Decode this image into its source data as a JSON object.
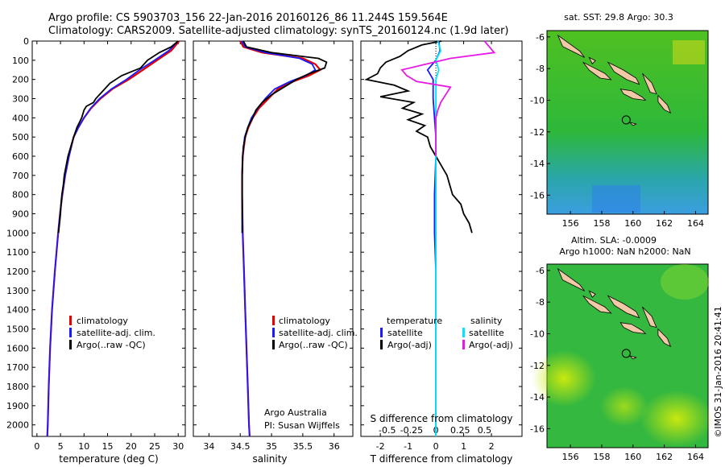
{
  "header": {
    "line1": "Argo profile: CS 5903703_156 22-Jan-2016 20160126_86 11.244S 159.564E",
    "line2": "Climatology: CARS2009. Satellite-adjusted climatology: synTS_20160124.nc (1.9d later)"
  },
  "depth_ticks": [
    0,
    100,
    200,
    300,
    400,
    500,
    600,
    700,
    800,
    900,
    1000,
    1100,
    1200,
    1300,
    1400,
    1500,
    1600,
    1700,
    1800,
    1900,
    2000
  ],
  "colors": {
    "climatology": "#e60000",
    "satellite": "#1a1aff",
    "argo": "#000000",
    "sal_satellite": "#00e5ff",
    "sal_argo": "#e619e6"
  },
  "chart_data": [
    {
      "type": "line",
      "panel": "temperature",
      "xlabel": "temperature (deg C)",
      "xlim": [
        -1,
        31.5
      ],
      "ylim": [
        2060,
        0
      ],
      "x_ticks": [
        0,
        5,
        10,
        15,
        20,
        25,
        30
      ],
      "legend": [
        "climatology",
        "satellite-adj. clim.",
        "Argo(..raw -QC)"
      ],
      "series": [
        {
          "name": "climatology",
          "depth": [
            0,
            50,
            100,
            150,
            200,
            250,
            300,
            350,
            400,
            450,
            500,
            600,
            700,
            800,
            900,
            1000,
            1200,
            1400,
            1600,
            1800,
            2000,
            2060
          ],
          "values": [
            30.2,
            28.5,
            25.5,
            22.5,
            19.5,
            16,
            13.5,
            11.5,
            10,
            8.8,
            7.8,
            6.8,
            6,
            5.4,
            4.9,
            4.5,
            3.8,
            3.2,
            2.8,
            2.5,
            2.3,
            2.2
          ]
        },
        {
          "name": "satellite-adj. clim.",
          "depth": [
            0,
            50,
            100,
            150,
            200,
            250,
            300,
            350,
            400,
            450,
            500,
            600,
            700,
            800,
            900,
            1000,
            1200,
            1400,
            1600,
            1800,
            2000,
            2060
          ],
          "values": [
            30,
            28,
            25,
            21.8,
            19,
            15.8,
            13.3,
            11.4,
            10,
            8.8,
            7.8,
            6.8,
            6,
            5.4,
            4.9,
            4.5,
            3.8,
            3.2,
            2.8,
            2.5,
            2.3,
            2.2
          ]
        },
        {
          "name": "Argo(..raw -QC)",
          "depth": [
            0,
            30,
            60,
            100,
            140,
            180,
            220,
            260,
            300,
            320,
            340,
            360,
            400,
            450,
            500,
            550,
            600,
            650,
            700,
            750,
            800,
            850,
            900,
            950,
            1000
          ],
          "values": [
            30,
            28.5,
            26,
            23.5,
            22,
            18,
            15.5,
            14,
            12.5,
            12,
            10.5,
            10,
            9.5,
            8.5,
            7.8,
            7.2,
            6.6,
            6.2,
            5.8,
            5.6,
            5.3,
            5.1,
            5,
            4.8,
            4.6
          ]
        }
      ]
    },
    {
      "type": "line",
      "panel": "salinity",
      "xlabel": "salinity",
      "xlim": [
        33.75,
        36.3
      ],
      "ylim": [
        2060,
        0
      ],
      "x_ticks": [
        34,
        34.5,
        35,
        35.5,
        36
      ],
      "legend": [
        "climatology",
        "satellite-adj. clim.",
        "Argo(..raw -QC)"
      ],
      "series": [
        {
          "name": "climatology",
          "depth": [
            0,
            30,
            60,
            90,
            120,
            150,
            180,
            210,
            250,
            300,
            350,
            400,
            450,
            500,
            600,
            700,
            800,
            1000,
            1200,
            1400,
            1600,
            1800,
            2000,
            2060
          ],
          "values": [
            34.5,
            34.55,
            34.85,
            35.5,
            35.7,
            35.78,
            35.6,
            35.35,
            35.1,
            34.95,
            34.8,
            34.7,
            34.63,
            34.58,
            34.54,
            34.53,
            34.53,
            34.54,
            34.56,
            34.58,
            34.6,
            34.62,
            34.64,
            34.65
          ]
        },
        {
          "name": "satellite-adj. clim.",
          "depth": [
            0,
            30,
            60,
            90,
            120,
            150,
            180,
            210,
            250,
            300,
            350,
            400,
            450,
            500,
            600,
            700,
            800,
            1000,
            1200,
            1400,
            1600,
            1800,
            2000,
            2060
          ],
          "values": [
            34.52,
            34.58,
            34.9,
            35.45,
            35.65,
            35.7,
            35.55,
            35.3,
            35.05,
            34.9,
            34.78,
            34.68,
            34.62,
            34.57,
            34.54,
            34.53,
            34.53,
            34.54,
            34.56,
            34.58,
            34.6,
            34.62,
            34.64,
            34.65
          ]
        },
        {
          "name": "Argo(..raw -QC)",
          "depth": [
            0,
            30,
            60,
            90,
            110,
            140,
            170,
            200,
            240,
            280,
            320,
            360,
            400,
            450,
            500,
            550,
            600,
            700,
            800,
            900,
            1000
          ],
          "values": [
            34.55,
            34.6,
            35.0,
            35.75,
            35.88,
            35.85,
            35.6,
            35.4,
            35.2,
            35.0,
            34.85,
            34.75,
            34.7,
            34.62,
            34.58,
            34.55,
            34.54,
            34.53,
            34.53,
            34.53,
            34.53
          ]
        }
      ]
    },
    {
      "type": "line",
      "panel": "difference",
      "xlabel": "T difference from climatology",
      "x2label": "S difference from climatology",
      "xlim": [
        -2.7,
        3.1
      ],
      "ylim": [
        2060,
        0
      ],
      "x_ticks": [
        -2,
        -1,
        0,
        1,
        2
      ],
      "x2_ticks": [
        "-0.5",
        "-0.25",
        "0",
        "0.25",
        "0.5"
      ],
      "legend_titles": [
        "temperature",
        "salinity"
      ],
      "legend": [
        "satellite",
        "Argo(-adj)",
        "satellite",
        "Argo(-adj)"
      ],
      "series": [
        {
          "name": "satellite",
          "depth": [
            0,
            50,
            100,
            150,
            200,
            300,
            400,
            500,
            600,
            800,
            1000,
            1200,
            1500,
            1800,
            2000,
            2060
          ],
          "values": [
            0.1,
            0.15,
            0.0,
            -0.3,
            -0.1,
            -0.1,
            -0.05,
            0.0,
            0.0,
            -0.05,
            -0.05,
            0.0,
            0.0,
            0.0,
            0.0,
            0.0
          ]
        },
        {
          "name": "Argo(-adj)",
          "depth": [
            0,
            20,
            50,
            80,
            110,
            140,
            170,
            200,
            230,
            260,
            290,
            320,
            350,
            380,
            410,
            440,
            470,
            500,
            550,
            600,
            650,
            700,
            750,
            800,
            850,
            900,
            950,
            1000
          ],
          "values": [
            0.2,
            -0.5,
            -1.0,
            -1.3,
            -1.8,
            -2.0,
            -2.1,
            -2.5,
            -1.5,
            -1.0,
            -2.0,
            -0.8,
            -1.2,
            -0.5,
            -1.0,
            -0.4,
            -0.7,
            -0.3,
            -0.2,
            0.0,
            0.2,
            0.4,
            0.5,
            0.6,
            0.9,
            1.0,
            1.2,
            1.3
          ]
        },
        {
          "name": "satellite",
          "depth": [
            0,
            50,
            100,
            150,
            200,
            300,
            400,
            500,
            600,
            800,
            1000,
            1200,
            1500,
            1800,
            2000,
            2060
          ],
          "values": [
            0.02,
            0.05,
            0.0,
            0.03,
            0.0,
            0.0,
            0.0,
            0.0,
            0.0,
            0.0,
            0.0,
            0.0,
            0.0,
            0.0,
            0.0,
            0.0
          ]
        },
        {
          "name": "Argo(-adj)",
          "depth": [
            0,
            30,
            60,
            90,
            120,
            150,
            180,
            210,
            240,
            280,
            320,
            360,
            400,
            440,
            480,
            520,
            560,
            600
          ],
          "values": [
            0.5,
            0.55,
            0.6,
            0.15,
            -0.1,
            -0.35,
            -0.3,
            -0.2,
            0.15,
            0.1,
            0.05,
            0.02,
            0.0,
            0.0,
            0.0,
            0.0,
            0.0,
            0.0
          ]
        }
      ]
    }
  ],
  "credits": {
    "org": "Argo Australia",
    "pi": "PI: Susan Wijffels"
  },
  "maps": [
    {
      "title": "sat. SST: 29.8 Argo: 30.3",
      "x_ticks": [
        156,
        158,
        160,
        162,
        164
      ],
      "y_ticks": [
        -6,
        -8,
        -10,
        -12,
        -14,
        -16
      ],
      "xlim": [
        154.5,
        164.8
      ],
      "ylim": [
        -17.2,
        -5.6
      ],
      "argo_lon": 159.564,
      "argo_lat": -11.244
    },
    {
      "title": "Altim. SLA: -0.0009",
      "subtitle": "Argo h1000: NaN h2000: NaN",
      "x_ticks": [
        156,
        158,
        160,
        162,
        164
      ],
      "y_ticks": [
        -6,
        -8,
        -10,
        -12,
        -14,
        -16
      ],
      "xlim": [
        154.5,
        164.8
      ],
      "ylim": [
        -17.2,
        -5.6
      ],
      "argo_lon": 159.564,
      "argo_lat": -11.244
    }
  ],
  "footer_stamp": "©IMOS 31-Jan-2016 20:41:41"
}
